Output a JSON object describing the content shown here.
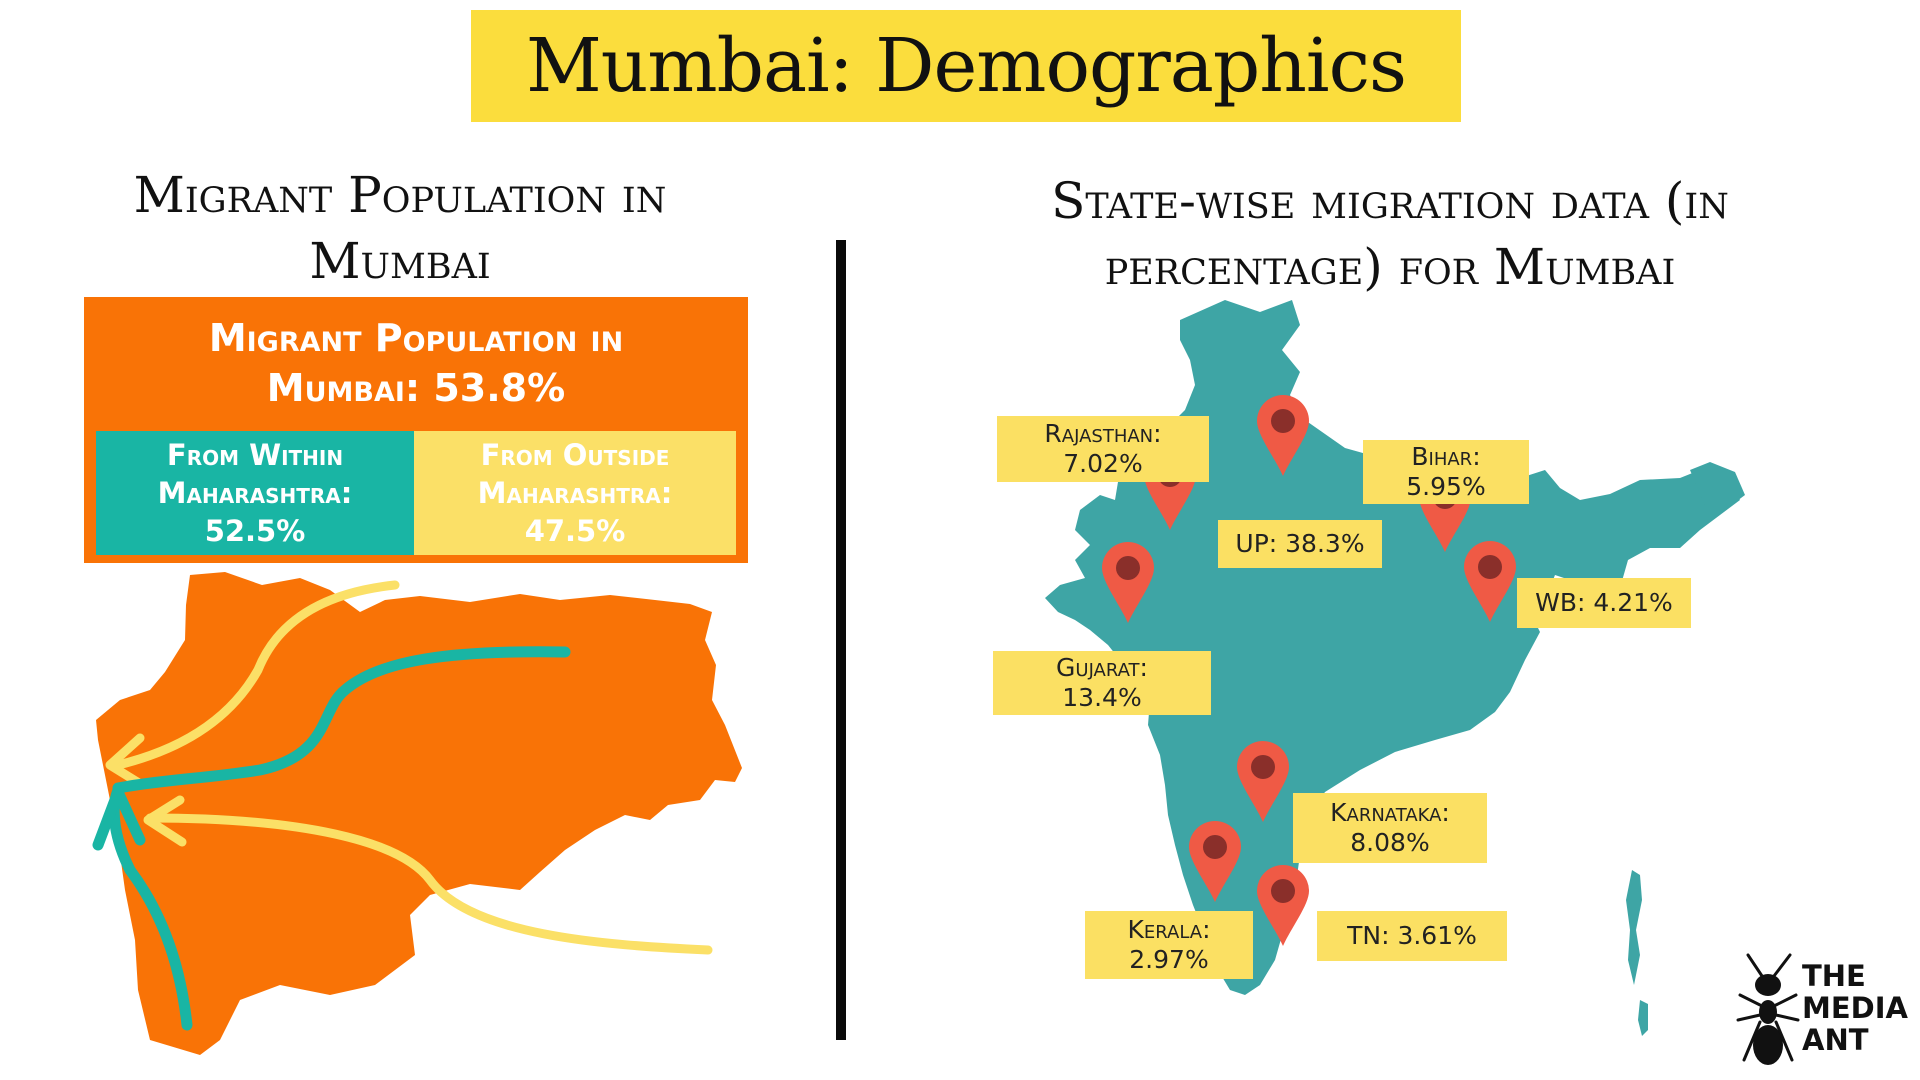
{
  "title": "Mumbai: Demographics",
  "left_section": {
    "heading_line1": "Migrant Population in",
    "heading_line2": "Mumbai",
    "box_title_line1": "Migrant Population in",
    "box_title_line2": "Mumbai: 53.8%",
    "within": {
      "line1": "From Within",
      "line2": "Maharashtra:",
      "value": "52.5%"
    },
    "outside": {
      "line1": "From Outside",
      "line2": "Maharashtra:",
      "value": "47.5%"
    },
    "map_color": "#f97306",
    "within_color": "#19b5a4",
    "outside_color": "#fbe067"
  },
  "right_section": {
    "heading_line1": "State-wise migration data (in",
    "heading_line2": "percentage) for Mumbai",
    "map_color": "#3ea5a5",
    "pin_color": "#ef5a45",
    "states": [
      {
        "name": "Rajasthan:",
        "value": "7.02%"
      },
      {
        "name": "UP: 38.3%",
        "value": ""
      },
      {
        "name": "Bihar:",
        "value": "5.95%"
      },
      {
        "name": "WB: 4.21%",
        "value": ""
      },
      {
        "name": "Gujarat:",
        "value": "13.4%"
      },
      {
        "name": "Karnataka:",
        "value": "8.08%"
      },
      {
        "name": "Kerala:",
        "value": "2.97%"
      },
      {
        "name": "TN: 3.61%",
        "value": ""
      }
    ]
  },
  "logo": {
    "line1": "THE",
    "line2": "MEDIA",
    "line3": "ANT",
    "icon": "ant-icon"
  }
}
